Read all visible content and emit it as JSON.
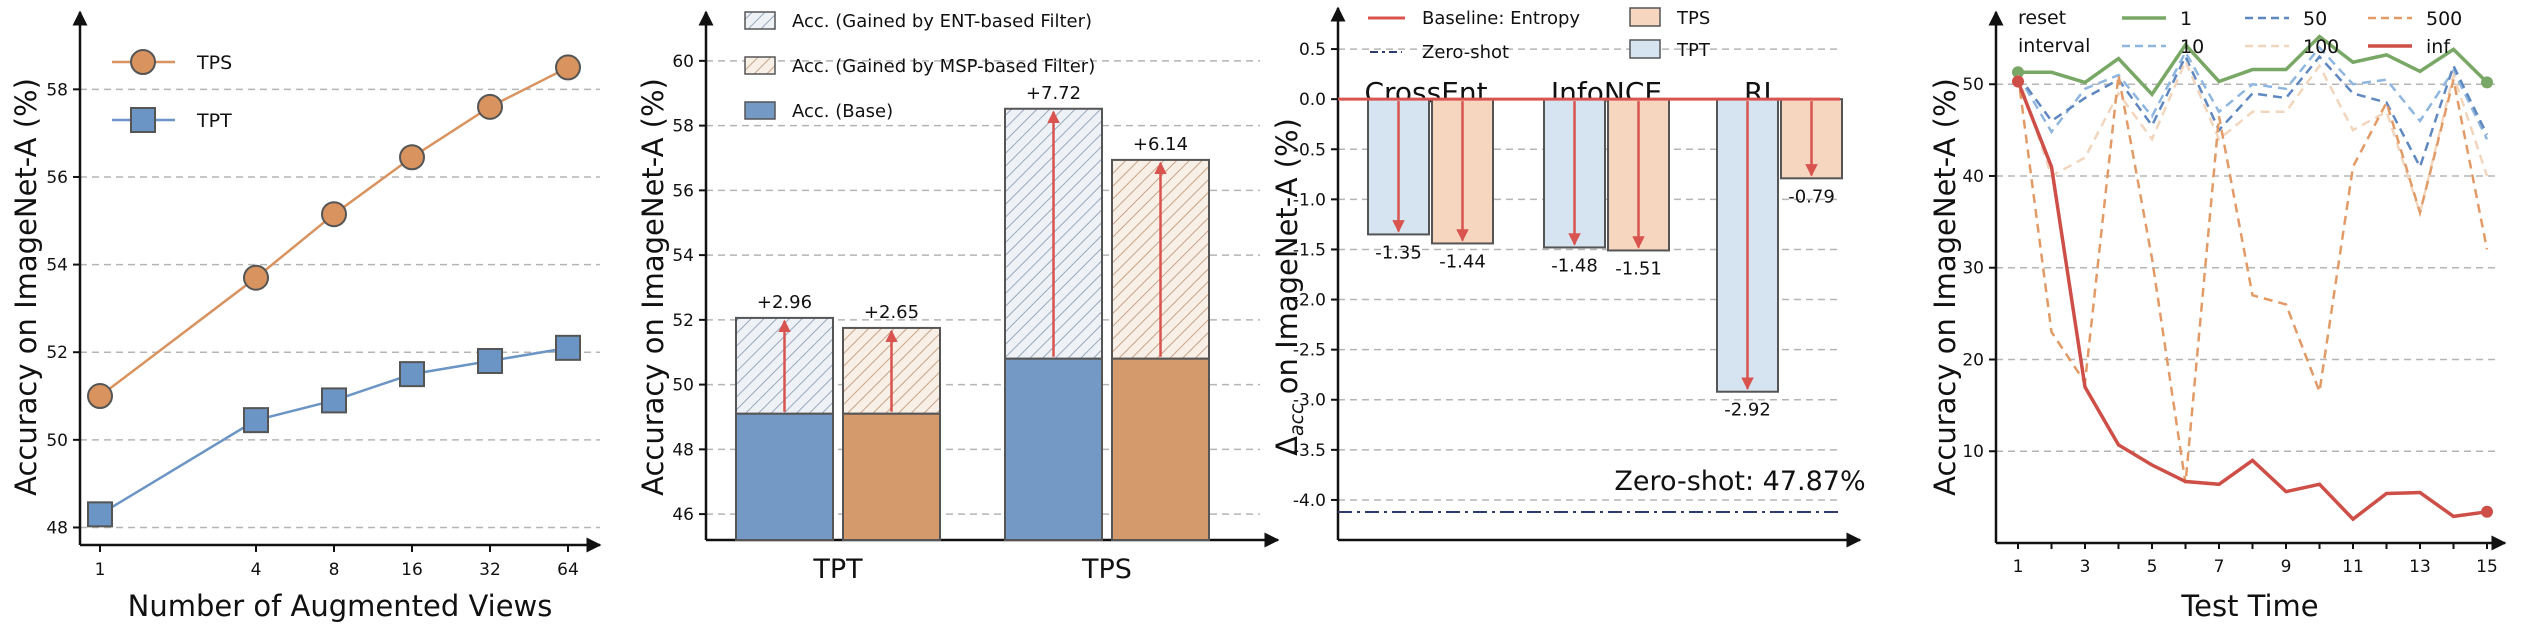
{
  "chart_data": [
    {
      "type": "line",
      "ylabel": "Accuracy on ImageNet-A (%)",
      "xlabel": "Number of Augmented Views",
      "x": [
        1,
        4,
        8,
        16,
        32,
        64
      ],
      "xticks": [
        "1",
        "4",
        "8",
        "16",
        "32",
        "64"
      ],
      "yticks": [
        "48",
        "50",
        "52",
        "54",
        "56",
        "58"
      ],
      "ylim": [
        47.6,
        59.4
      ],
      "grid": "horizontal dashed",
      "legend": "top-left",
      "series": [
        {
          "name": "TPS",
          "values": [
            51.0,
            53.7,
            55.15,
            56.45,
            57.6,
            58.5
          ],
          "color": "#d8935f",
          "marker": "circle"
        },
        {
          "name": "TPT",
          "values": [
            48.3,
            50.45,
            50.9,
            51.5,
            51.8,
            52.1
          ],
          "color": "#6b95c4",
          "marker": "square"
        }
      ]
    },
    {
      "type": "bar",
      "stacked": true,
      "ylabel": "Accuracy on ImageNet-A (%)",
      "categories": [
        "TPT",
        "TPS"
      ],
      "yticks": [
        "46",
        "48",
        "50",
        "52",
        "54",
        "56",
        "58",
        "60"
      ],
      "ylim": [
        45.2,
        61.2
      ],
      "legend": "top",
      "legend_entries": [
        "Acc. (Gained by ENT-based Filter)",
        "Acc. (Gained by MSP-based Filter)",
        "Acc. (Base)"
      ],
      "bars": [
        {
          "category": "TPT",
          "filter": "ENT",
          "base": 49.1,
          "gain": 2.96,
          "label": "+2.96",
          "color": "#7399c4"
        },
        {
          "category": "TPT",
          "filter": "MSP",
          "base": 49.1,
          "gain": 2.65,
          "label": "+2.65",
          "color": "#d59a6c"
        },
        {
          "category": "TPS",
          "filter": "ENT",
          "base": 50.8,
          "gain": 7.72,
          "label": "+7.72",
          "color": "#7399c4"
        },
        {
          "category": "TPS",
          "filter": "MSP",
          "base": 50.8,
          "gain": 6.14,
          "label": "+6.14",
          "color": "#d59a6c"
        }
      ]
    },
    {
      "type": "bar",
      "ylabel_prefix": "Δ",
      "ylabel_sub": "acc",
      "ylabel_rest": " on ImageNet-A (%)",
      "yticks": [
        "0.5",
        "0.0",
        "-0.5",
        "-1.0",
        "-1.5",
        "-2.0",
        "-2.5",
        "-3.0",
        "-3.5",
        "-4.0"
      ],
      "ylim": [
        -4.3,
        0.85
      ],
      "legend": "top",
      "legend_entries": [
        "Baseline: Entropy",
        "Zero-shot",
        "TPS",
        "TPT"
      ],
      "groups": [
        "CrossEnt.",
        "InfoNCE",
        "RL"
      ],
      "series": [
        {
          "name": "TPT",
          "values": [
            -1.35,
            -1.48,
            -2.92
          ],
          "labels": [
            "-1.35",
            "-1.48",
            "-2.92"
          ],
          "color": "#d6e4f2"
        },
        {
          "name": "TPS",
          "values": [
            -1.44,
            -1.51,
            -0.79
          ],
          "labels": [
            "-1.44",
            "-1.51",
            "-0.79"
          ],
          "color": "#f7d6c0"
        }
      ],
      "zero_shot_line": -4.12,
      "annotation": "Zero-shot: 47.87%"
    },
    {
      "type": "line",
      "ylabel": "Accuracy on ImageNet-A (%)",
      "xlabel": "Test Time",
      "x": [
        1,
        2,
        3,
        4,
        5,
        6,
        7,
        8,
        9,
        10,
        11,
        12,
        13,
        14,
        15
      ],
      "xticks": [
        "1",
        "3",
        "5",
        "7",
        "9",
        "11",
        "13",
        "15"
      ],
      "yticks": [
        "10",
        "20",
        "30",
        "40",
        "50"
      ],
      "ylim": [
        0,
        57
      ],
      "grid": "horizontal dashed",
      "legend": "top",
      "legend_title_lines": [
        "reset",
        "interval"
      ],
      "series": [
        {
          "name": "1",
          "values": [
            51.3,
            51.3,
            50.2,
            52.8,
            48.9,
            54.3,
            50.3,
            51.6,
            51.6,
            55.2,
            52.4,
            53.2,
            51.4,
            53.8,
            50.2
          ],
          "color": "#79a866",
          "style": "solid"
        },
        {
          "name": "10",
          "values": [
            51.0,
            44.8,
            49.5,
            51.0,
            46.5,
            53.5,
            47.0,
            50.0,
            49.5,
            54.0,
            50.0,
            50.5,
            46.0,
            51.5,
            44.0
          ],
          "color": "#8fb6df",
          "style": "dashed"
        },
        {
          "name": "50",
          "values": [
            51.0,
            46.0,
            48.5,
            50.5,
            45.5,
            53.0,
            45.0,
            49.0,
            48.5,
            53.0,
            49.0,
            48.0,
            41.0,
            52.0,
            44.5
          ],
          "color": "#5f88c0",
          "style": "dashed"
        },
        {
          "name": "100",
          "values": [
            51.0,
            40.0,
            42.0,
            49.0,
            44.0,
            52.5,
            44.0,
            47.0,
            47.0,
            52.0,
            45.0,
            47.0,
            36.0,
            51.0,
            40.0
          ],
          "color": "#f1d6bd",
          "style": "dashed"
        },
        {
          "name": "500",
          "values": [
            51.0,
            23.0,
            17.5,
            51.0,
            31.0,
            6.5,
            46.5,
            27.0,
            26.0,
            16.5,
            41.0,
            48.0,
            36.0,
            50.5,
            32.0
          ],
          "color": "#e29b66",
          "style": "dashed"
        },
        {
          "name": "inf",
          "values": [
            50.3,
            41.0,
            17.0,
            10.7,
            8.5,
            6.7,
            6.4,
            9.0,
            5.6,
            6.4,
            2.6,
            5.4,
            5.5,
            2.9,
            3.4
          ],
          "color": "#cd4f47",
          "style": "solid"
        }
      ]
    }
  ]
}
